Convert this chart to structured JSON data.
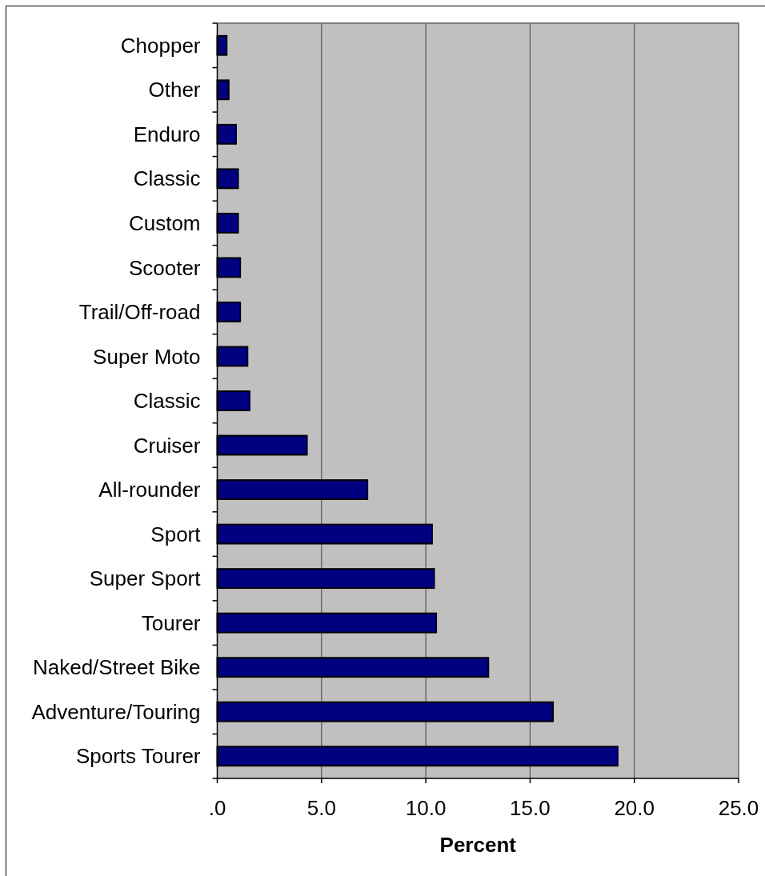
{
  "chart_data": {
    "type": "bar",
    "orientation": "horizontal",
    "categories": [
      "Chopper",
      "Other",
      "Enduro",
      "Classic",
      "Custom",
      "Scooter",
      "Trail/Off-road",
      "Super Moto",
      "Classic",
      "Cruiser",
      "All-rounder",
      "Sport",
      "Super Sport",
      "Tourer",
      "Naked/Street Bike",
      "Adventure/Touring",
      "Sports Tourer"
    ],
    "values": [
      0.45,
      0.55,
      0.9,
      1.0,
      1.0,
      1.1,
      1.1,
      1.45,
      1.55,
      4.3,
      7.2,
      10.3,
      10.4,
      10.5,
      13.0,
      16.1,
      19.2
    ],
    "color": "#000080",
    "xlabel": "Percent",
    "xlim": [
      0,
      25
    ],
    "xticks": [
      {
        "value": 0,
        "label": ".0"
      },
      {
        "value": 5,
        "label": "5.0"
      },
      {
        "value": 10,
        "label": "10.0"
      },
      {
        "value": 15,
        "label": "15.0"
      },
      {
        "value": 20,
        "label": "20.0"
      },
      {
        "value": 25,
        "label": "25.0"
      }
    ],
    "grid": "x"
  }
}
